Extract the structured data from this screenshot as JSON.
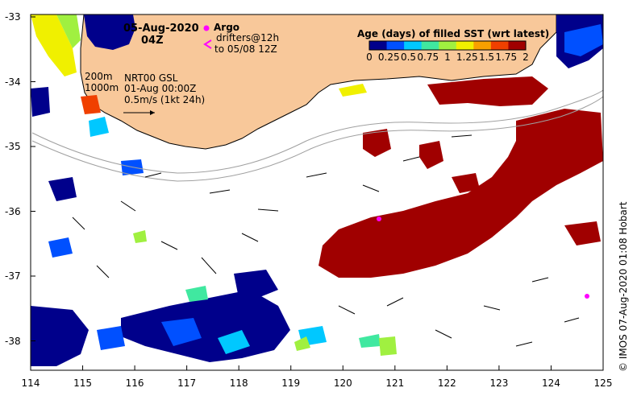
{
  "header": {
    "date": "05-Aug-2020",
    "time": "04Z"
  },
  "legend": {
    "argo_label": "Argo",
    "drifters_label_1": "drifters@12h",
    "drifters_label_2": "to 05/08 12Z"
  },
  "info": {
    "contour1": "200m",
    "contour2": "1000m",
    "line1": "NRT00 GSL",
    "line2": "01-Aug 00:00Z",
    "line3": "0.5m/s (1kt 24h)"
  },
  "colorbar": {
    "title": "Age (days) of filled SST (wrt latest)",
    "ticks": [
      "0",
      "0.25",
      "0.5",
      "0.75",
      "1",
      "1.25",
      "1.5",
      "1.75",
      "2"
    ],
    "colors": [
      "#00008b",
      "#0050ff",
      "#00c8ff",
      "#40e8a0",
      "#a0f040",
      "#f0f000",
      "#f8a000",
      "#f04000",
      "#a00000"
    ]
  },
  "axes": {
    "y_ticks": [
      "-33",
      "-34",
      "-35",
      "-36",
      "-37",
      "-38"
    ],
    "x_ticks": [
      "114",
      "115",
      "116",
      "117",
      "118",
      "119",
      "120",
      "121",
      "122",
      "123",
      "124",
      "125"
    ]
  },
  "credit": "© IMOS 07-Aug-2020 01:08 Hobart",
  "colors": {
    "land": "#f8c89a",
    "old_sst": "#a00000",
    "deep_blue": "#00008b",
    "argo": "#ff00ff"
  }
}
